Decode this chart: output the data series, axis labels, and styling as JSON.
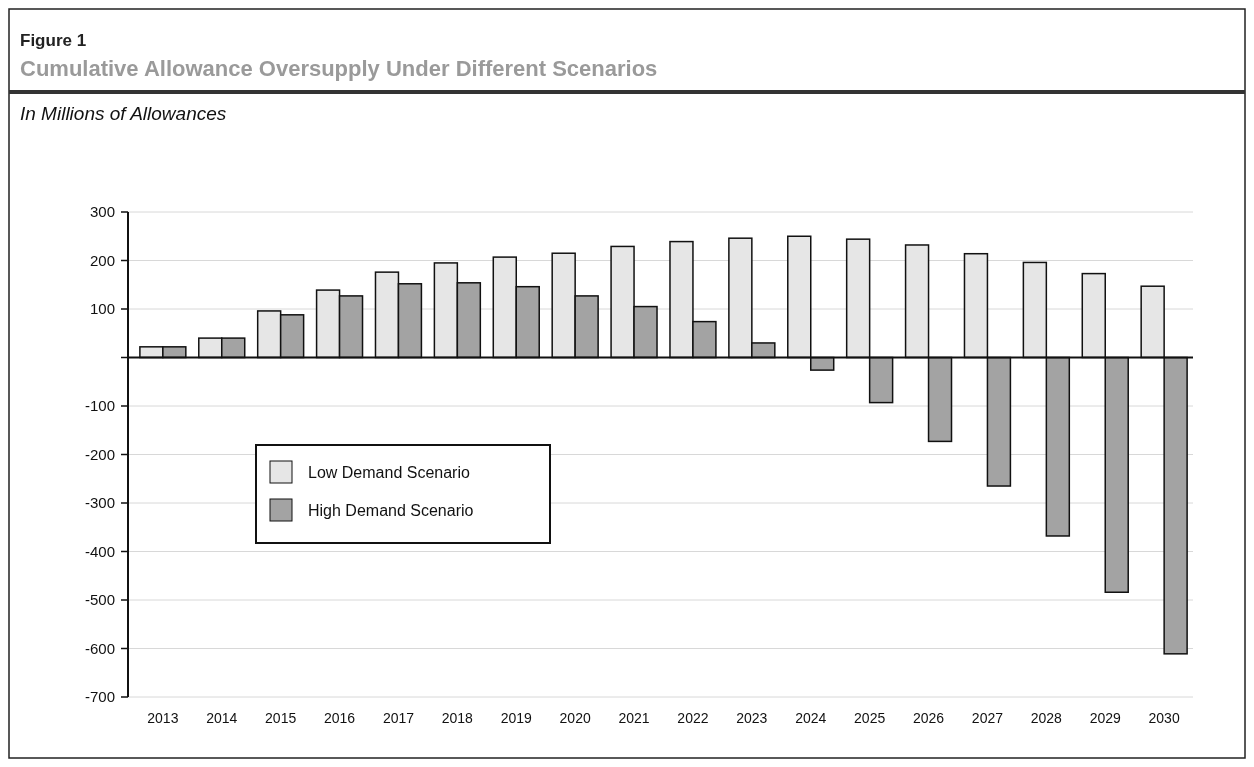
{
  "chart_data": {
    "type": "bar",
    "title": "Cumulative Allowance Oversupply Under Different Scenarios",
    "subtitle": "In Millions of Allowances",
    "annotations": [
      "Figure 1"
    ],
    "categories": [
      "2013",
      "2014",
      "2015",
      "2016",
      "2017",
      "2018",
      "2019",
      "2020",
      "2021",
      "2022",
      "2023",
      "2024",
      "2025",
      "2026",
      "2027",
      "2028",
      "2029",
      "2030"
    ],
    "series": [
      {
        "name": "Low Demand Scenario",
        "color": "#e6e6e6",
        "values": [
          22,
          40,
          96,
          139,
          176,
          195,
          207,
          215,
          229,
          239,
          246,
          250,
          244,
          232,
          214,
          196,
          173,
          147
        ]
      },
      {
        "name": "High Demand Scenario",
        "color": "#a3a3a3",
        "values": [
          22,
          40,
          88,
          127,
          152,
          154,
          146,
          127,
          105,
          74,
          30,
          -26,
          -93,
          -173,
          -265,
          -368,
          -484,
          -611
        ]
      }
    ],
    "ylim": [
      -700,
      300
    ],
    "yticks": [
      -700,
      -600,
      -500,
      -400,
      -300,
      -200,
      -100,
      {
        "value": 0,
        "label": null
      },
      100,
      200,
      300
    ],
    "grid": "y",
    "legend": "left"
  }
}
